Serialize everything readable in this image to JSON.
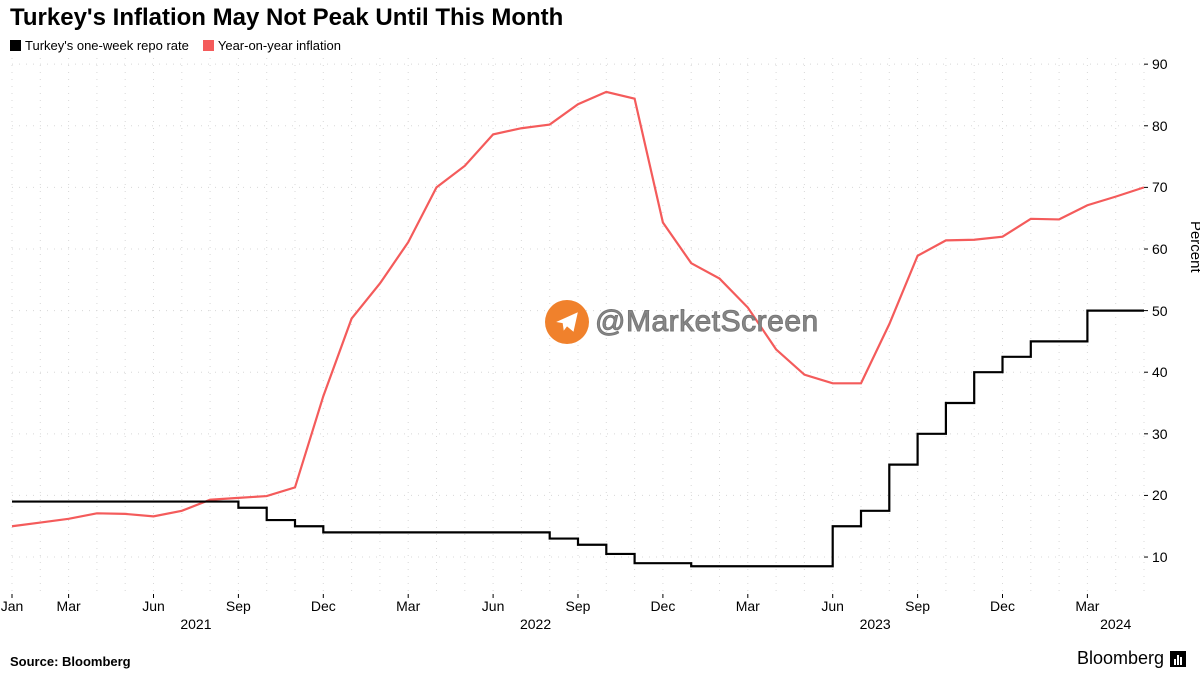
{
  "title": "Turkey's Inflation May Not Peak Until This Month",
  "source_label": "Source: Bloomberg",
  "brand_label": "Bloomberg",
  "yaxis_title": "Percent",
  "watermark_text": "@MarketScreen",
  "colors": {
    "background": "#ffffff",
    "grid_dot": "#d8d8d8",
    "axis_tick": "#000000",
    "series_repo": "#000000",
    "series_inflation": "#f45b5b",
    "wm_circle": "#f0812c",
    "wm_arrow": "#ffffff"
  },
  "legend": [
    {
      "label": "Turkey's one-week repo rate",
      "color": "#000000"
    },
    {
      "label": "Year-on-year inflation",
      "color": "#f45b5b"
    }
  ],
  "chart": {
    "type": "line",
    "ylim": [
      4,
      91
    ],
    "yticks": [
      10,
      20,
      30,
      40,
      50,
      60,
      70,
      80,
      90
    ],
    "x_count": 41,
    "x_month_labels": [
      {
        "idx": 0,
        "text": "Jan"
      },
      {
        "idx": 2,
        "text": "Mar"
      },
      {
        "idx": 5,
        "text": "Jun"
      },
      {
        "idx": 8,
        "text": "Sep"
      },
      {
        "idx": 11,
        "text": "Dec"
      },
      {
        "idx": 14,
        "text": "Mar"
      },
      {
        "idx": 17,
        "text": "Jun"
      },
      {
        "idx": 20,
        "text": "Sep"
      },
      {
        "idx": 23,
        "text": "Dec"
      },
      {
        "idx": 26,
        "text": "Mar"
      },
      {
        "idx": 29,
        "text": "Jun"
      },
      {
        "idx": 32,
        "text": "Sep"
      },
      {
        "idx": 35,
        "text": "Dec"
      },
      {
        "idx": 38,
        "text": "Mar"
      }
    ],
    "x_year_labels": [
      {
        "idx": 6.5,
        "text": "2021"
      },
      {
        "idx": 18.5,
        "text": "2022"
      },
      {
        "idx": 30.5,
        "text": "2023"
      },
      {
        "idx": 39,
        "text": "2024"
      }
    ],
    "series": {
      "repo": {
        "color": "#000000",
        "width": 2.2,
        "data": [
          19,
          19,
          19,
          19,
          19,
          19,
          19,
          19,
          18,
          16,
          15,
          14,
          14,
          14,
          14,
          14,
          14,
          14,
          14,
          13,
          12,
          10.5,
          9,
          9,
          8.5,
          8.5,
          8.5,
          8.5,
          8.5,
          15,
          17.5,
          25,
          30,
          35,
          40,
          42.5,
          45,
          45,
          50,
          50,
          50
        ]
      },
      "inflation": {
        "color": "#f45b5b",
        "width": 2.2,
        "data": [
          15,
          15.6,
          16.2,
          17.1,
          17,
          16.6,
          17.5,
          19.3,
          19.6,
          19.9,
          21.3,
          36.1,
          48.7,
          54.4,
          61.1,
          70,
          73.5,
          78.6,
          79.6,
          80.2,
          83.5,
          85.5,
          84.4,
          64.3,
          57.7,
          55.2,
          50.5,
          43.7,
          39.6,
          38.2,
          38.2,
          47.8,
          58.9,
          61.4,
          61.5,
          62,
          64.9,
          64.8,
          67.1,
          68.5,
          70
        ]
      }
    }
  }
}
